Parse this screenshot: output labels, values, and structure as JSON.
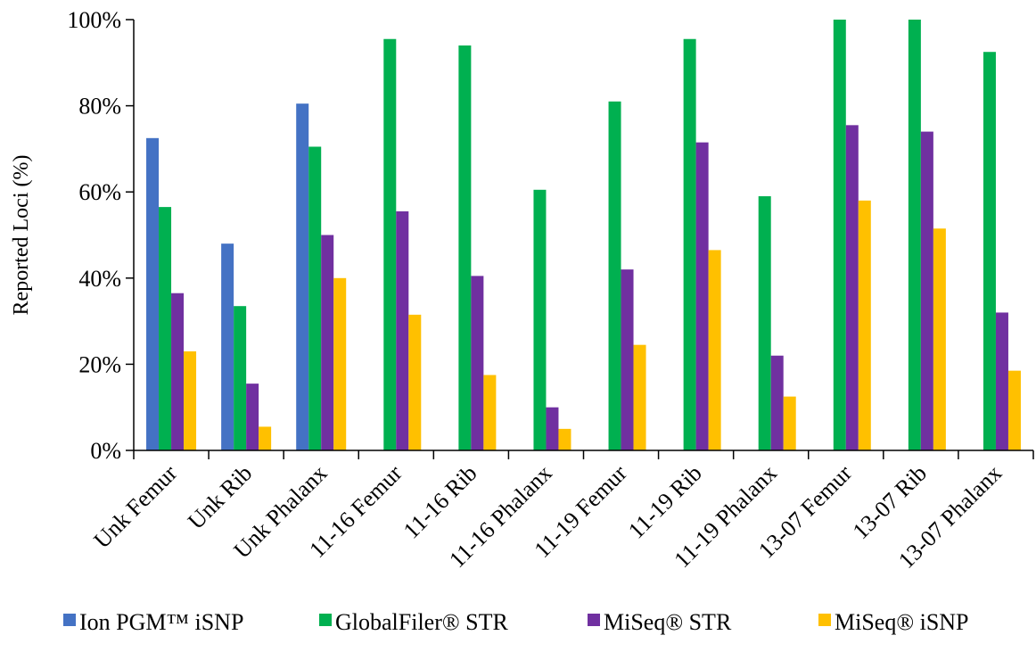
{
  "chart_data": {
    "type": "bar",
    "title": "",
    "xlabel": "",
    "ylabel": "Reported Loci (%)",
    "ylim": [
      0,
      100
    ],
    "y_ticks": [
      "0%",
      "20%",
      "40%",
      "60%",
      "80%",
      "100%"
    ],
    "grid": false,
    "legend_position": "bottom",
    "categories": [
      "Unk Femur",
      "Unk Rib",
      "Unk Phalanx",
      "11-16 Femur",
      "11-16 Rib",
      "11-16 Phalanx",
      "11-19 Femur",
      "11-19 Rib",
      "11-19 Phalanx",
      "13-07 Femur",
      "13-07 Rib",
      "13-07 Phalanx"
    ],
    "series": [
      {
        "name": "Ion PGM™ iSNP",
        "color": "#4472C4",
        "values": [
          72.5,
          48,
          80.5,
          null,
          null,
          null,
          null,
          null,
          null,
          null,
          null,
          null
        ]
      },
      {
        "name": "GlobalFiler® STR",
        "color": "#00B050",
        "values": [
          56.5,
          33.5,
          70.5,
          95.5,
          94,
          60.5,
          81,
          95.5,
          59,
          100,
          100,
          92.5
        ]
      },
      {
        "name": "MiSeq® STR",
        "color": "#7030A0",
        "values": [
          36.5,
          15.5,
          50,
          55.5,
          40.5,
          10,
          42,
          71.5,
          22,
          75.5,
          74,
          32
        ]
      },
      {
        "name": "MiSeq® iSNP",
        "color": "#FFC000",
        "values": [
          23,
          5.5,
          40,
          31.5,
          17.5,
          5,
          24.5,
          46.5,
          12.5,
          58,
          51.5,
          18.5
        ]
      }
    ]
  }
}
